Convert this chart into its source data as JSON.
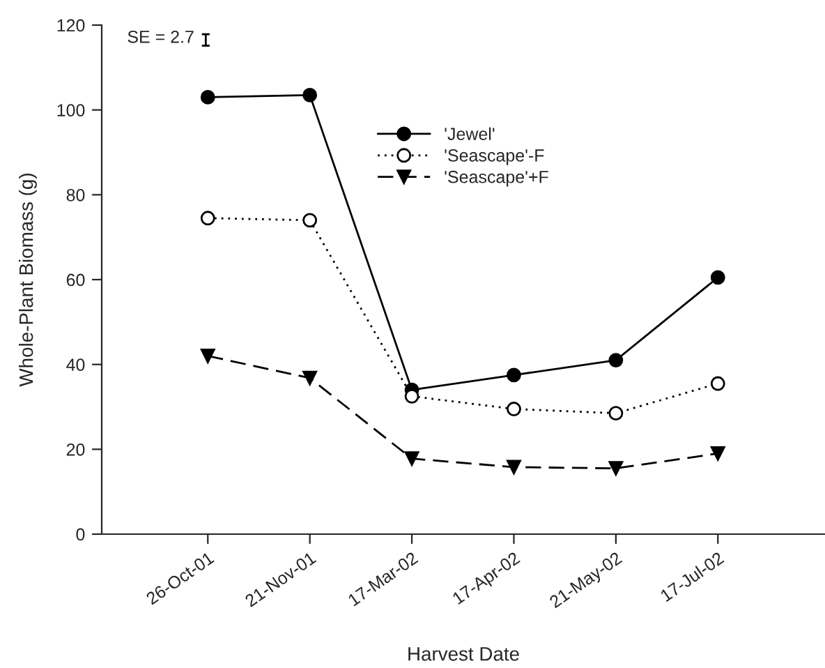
{
  "chart_data": {
    "type": "line",
    "xlabel": "Harvest Date",
    "ylabel": "Whole-Plant Biomass (g)",
    "categories": [
      "26-Oct-01",
      "21-Nov-01",
      "17-Mar-02",
      "17-Apr-02",
      "21-May-02",
      "17-Jul-02"
    ],
    "series": [
      {
        "name": "'Jewel'",
        "color": "#000000",
        "values": [
          103,
          103.5,
          34,
          37.5,
          41,
          60.5
        ],
        "marker": "circle",
        "line_style": "solid"
      },
      {
        "name": "'Seascape'-F",
        "color": "#000000",
        "values": [
          74.5,
          74,
          32.5,
          29.5,
          28.5,
          35.5
        ],
        "marker": "circle",
        "line_style": "dotted"
      },
      {
        "name": "'Seascape'+F",
        "color": "#000000",
        "values": [
          42,
          36.8,
          17.8,
          15.8,
          15.5,
          19
        ],
        "marker": "triangle",
        "line_style": "dashed"
      }
    ],
    "ylim": [
      0,
      120
    ],
    "yticks": [
      0,
      20,
      40,
      60,
      80,
      100,
      120
    ],
    "annotations": [
      "SE = 2.7"
    ],
    "grid": false,
    "legend": "top center"
  }
}
